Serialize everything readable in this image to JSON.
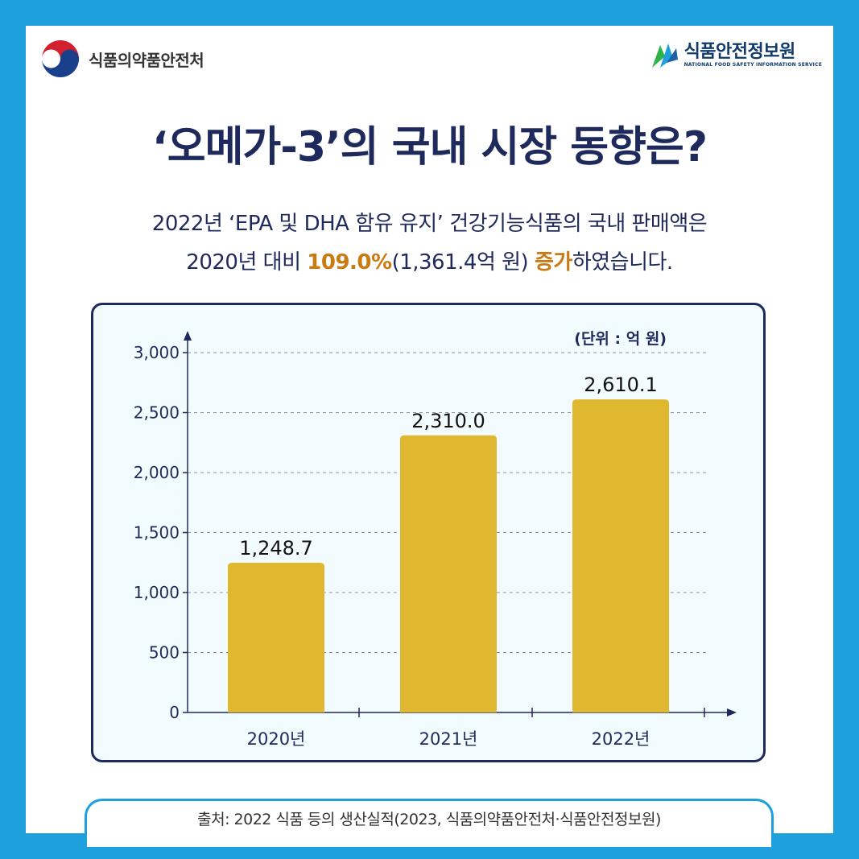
{
  "header": {
    "org_left": "식품의약품안전처",
    "org_right": "식품안전정보원",
    "org_right_sub": "NATIONAL FOOD SAFETY INFORMATION SERVICE"
  },
  "title": "‘오메가-3’의 국내 시장 동향은?",
  "subtitle": {
    "line1": "2022년 ‘EPA 및 DHA 함유 유지’ 건강기능식품의 국내 판매액은",
    "line2_pre": "2020년 대비 ",
    "line2_pct": "109.0%",
    "line2_mid": "(1,361.4억 원) ",
    "line2_inc": "증가",
    "line2_post": "하였습니다."
  },
  "chart_data": {
    "type": "bar",
    "categories": [
      "2020년",
      "2021년",
      "2022년"
    ],
    "values": [
      1248.7,
      2310.0,
      2610.1
    ],
    "value_labels": [
      "1,248.7",
      "2,310.0",
      "2,610.1"
    ],
    "unit_label": "(단위 : 억 원)",
    "ylim": [
      0,
      3000
    ],
    "yticks": [
      0,
      500,
      1000,
      1500,
      2000,
      2500,
      3000
    ],
    "ytick_labels": [
      "0",
      "500",
      "1,000",
      "1,500",
      "2,000",
      "2,500",
      "3,000"
    ],
    "grid": true,
    "bar_color": "#e0b830"
  },
  "source": "출처: 2022 식품 등의 생산실적(2023, 식품의약품안전처·식품안전정보원)",
  "colors": {
    "background": "#1ea0dc",
    "title": "#1f2a5c",
    "highlight": "#c97a10",
    "bar": "#e0b830"
  }
}
